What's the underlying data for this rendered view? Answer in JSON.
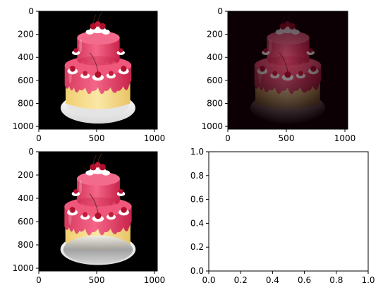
{
  "chart_data": [
    {
      "type": "image",
      "panel": "top-left",
      "image": "cake",
      "variant": "original",
      "background": "#000000",
      "xlim": [
        0,
        1024
      ],
      "ylim": [
        1024,
        0
      ],
      "xticks": [
        0,
        500,
        1000
      ],
      "xtick_labels": [
        "0",
        "500",
        "1000"
      ],
      "yticks": [
        0,
        200,
        400,
        600,
        800,
        1000
      ],
      "ytick_labels": [
        "0",
        "200",
        "400",
        "600",
        "800",
        "1000"
      ]
    },
    {
      "type": "image",
      "panel": "top-right",
      "image": "cake",
      "variant": "vignette",
      "background": "#000000",
      "xlim": [
        0,
        1024
      ],
      "ylim": [
        1024,
        0
      ],
      "xticks": [
        0,
        500,
        1000
      ],
      "xtick_labels": [
        "0",
        "500",
        "1000"
      ],
      "yticks": [
        0,
        200,
        400,
        600,
        800,
        1000
      ],
      "ytick_labels": [
        "0",
        "200",
        "400",
        "600",
        "800",
        "1000"
      ]
    },
    {
      "type": "image",
      "panel": "bottom-left",
      "image": "cake",
      "variant": "desaturated-plate",
      "background": "#000000",
      "xlim": [
        0,
        1024
      ],
      "ylim": [
        1024,
        0
      ],
      "xticks": [
        0,
        500,
        1000
      ],
      "xtick_labels": [
        "0",
        "500",
        "1000"
      ],
      "yticks": [
        0,
        200,
        400,
        600,
        800,
        1000
      ],
      "ytick_labels": [
        "0",
        "200",
        "400",
        "600",
        "800",
        "1000"
      ]
    },
    {
      "type": "empty",
      "panel": "bottom-right",
      "xlim": [
        0,
        1
      ],
      "ylim": [
        0,
        1
      ],
      "xticks": [
        0,
        0.2,
        0.4,
        0.6,
        0.8,
        1.0
      ],
      "xtick_labels": [
        "0.0",
        "0.2",
        "0.4",
        "0.6",
        "0.8",
        "1.0"
      ],
      "yticks": [
        0,
        0.2,
        0.4,
        0.6,
        0.8,
        1.0
      ],
      "ytick_labels": [
        "0.0",
        "0.2",
        "0.4",
        "0.6",
        "0.8",
        "1.0"
      ]
    }
  ],
  "colors": {
    "frosting": "#ec4a6c",
    "frosting_dark": "#c8234a",
    "sponge": "#f7dc8a",
    "plate": "#f4f4f4",
    "cherry": "#b0102c",
    "cream": "#ffffff"
  }
}
